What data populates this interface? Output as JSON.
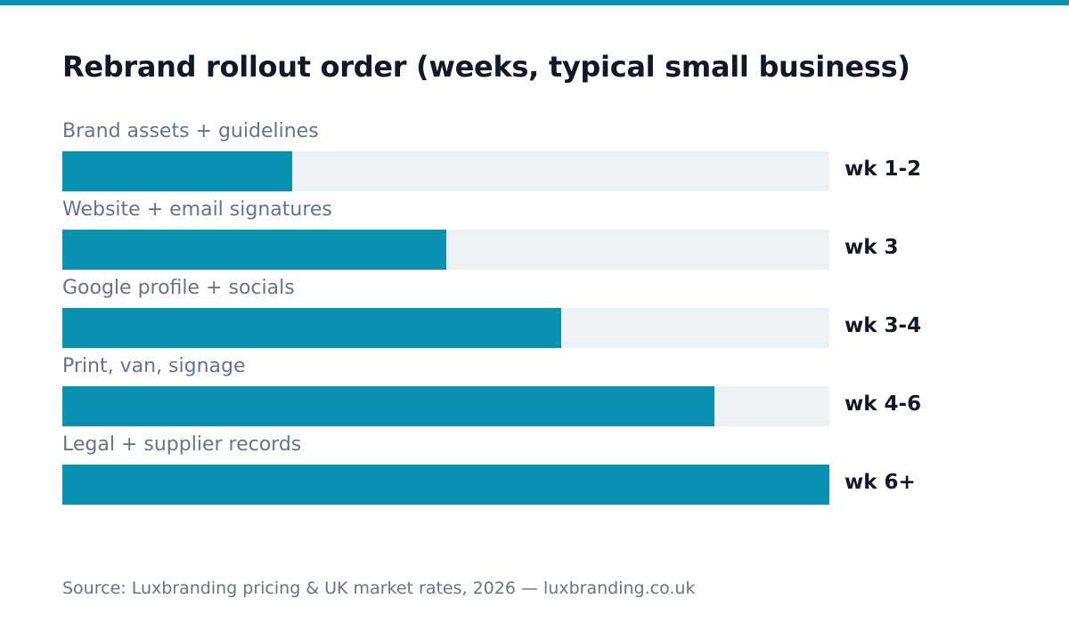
{
  "colors": {
    "accent": "#0891b2",
    "track": "#edf2f6",
    "title": "#111827",
    "muted": "#64748b"
  },
  "chart_data": {
    "type": "bar",
    "orientation": "horizontal",
    "title": "Rebrand rollout order (weeks, typical small business)",
    "xlabel": "",
    "ylabel": "",
    "grid": false,
    "legend": "none",
    "xlim": [
      0,
      6
    ],
    "categories": [
      "Brand assets + guidelines",
      "Website + email signatures",
      "Google profile + socials",
      "Print, van, signage",
      "Legal + supplier records"
    ],
    "values": [
      1.8,
      3,
      3.9,
      5.1,
      6
    ],
    "value_labels": [
      "wk 1-2",
      "wk 3",
      "wk 3-4",
      "wk 4-6",
      "wk 6+"
    ]
  },
  "source": "Source: Luxbranding pricing & UK market rates, 2026 — luxbranding.co.uk"
}
